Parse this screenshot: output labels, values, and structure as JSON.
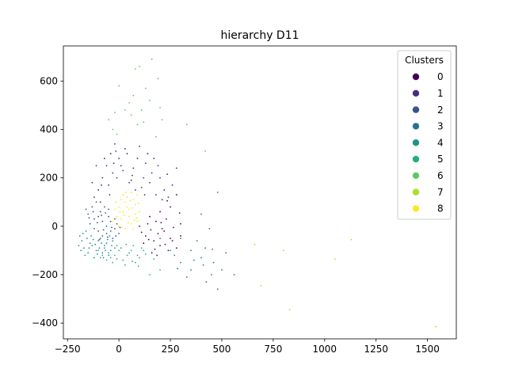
{
  "chart_data": {
    "type": "scatter",
    "title": "hierarchy D11",
    "xlabel": "",
    "ylabel": "",
    "xlim": [
      -270,
      1640
    ],
    "ylim": [
      -465,
      745
    ],
    "xticks": [
      -250,
      0,
      250,
      500,
      750,
      1000,
      1250,
      1500
    ],
    "xtick_labels": [
      "−250",
      "0",
      "250",
      "500",
      "750",
      "1000",
      "1250",
      "1500"
    ],
    "yticks": [
      -400,
      -200,
      0,
      200,
      400,
      600
    ],
    "ytick_labels": [
      "−400",
      "−200",
      "0",
      "200",
      "400",
      "600"
    ],
    "grid": false,
    "legend": {
      "title": "Clusters",
      "placement": "top-right",
      "entries": [
        "0",
        "1",
        "2",
        "3",
        "4",
        "5",
        "6",
        "7",
        "8"
      ]
    },
    "series": [
      {
        "name": "0",
        "color": "#440154",
        "points": [
          [
            100,
            0
          ],
          [
            130,
            -40
          ],
          [
            170,
            -60
          ],
          [
            200,
            -80
          ],
          [
            220,
            -20
          ],
          [
            250,
            -50
          ],
          [
            280,
            -90
          ],
          [
            300,
            10
          ],
          [
            150,
            40
          ],
          [
            180,
            20
          ],
          [
            210,
            -10
          ],
          [
            240,
            -100
          ],
          [
            160,
            -110
          ],
          [
            120,
            -70
          ],
          [
            190,
            -30
          ],
          [
            230,
            30
          ],
          [
            260,
            -60
          ],
          [
            140,
            10
          ],
          [
            200,
            60
          ],
          [
            250,
            80
          ],
          [
            280,
            130
          ],
          [
            300,
            -40
          ],
          [
            175,
            -95
          ],
          [
            110,
            -25
          ],
          [
            225,
            -75
          ],
          [
            265,
            -5
          ],
          [
            145,
            -55
          ],
          [
            205,
            15
          ],
          [
            185,
            -120
          ],
          [
            295,
            55
          ],
          [
            235,
            105
          ],
          [
            155,
            -15
          ]
        ]
      },
      {
        "name": "1",
        "color": "#472d7b",
        "points": [
          [
            -100,
            150
          ],
          [
            -80,
            200
          ],
          [
            -60,
            250
          ],
          [
            -40,
            300
          ],
          [
            -20,
            340
          ],
          [
            0,
            280
          ],
          [
            20,
            230
          ],
          [
            60,
            190
          ],
          [
            100,
            330
          ],
          [
            130,
            260
          ],
          [
            160,
            220
          ],
          [
            200,
            200
          ],
          [
            220,
            150
          ],
          [
            240,
            120
          ],
          [
            280,
            240
          ],
          [
            -120,
            120
          ],
          [
            -90,
            100
          ],
          [
            -50,
            170
          ],
          [
            -30,
            220
          ],
          [
            10,
            250
          ],
          [
            40,
            300
          ],
          [
            80,
            150
          ],
          [
            120,
            200
          ],
          [
            150,
            180
          ],
          [
            180,
            130
          ],
          [
            -70,
            280
          ],
          [
            -110,
            250
          ],
          [
            90,
            280
          ],
          [
            -10,
            200
          ],
          [
            50,
            180
          ],
          [
            170,
            280
          ],
          [
            210,
            110
          ],
          [
            -85,
            170
          ],
          [
            -45,
            130
          ],
          [
            30,
            320
          ],
          [
            70,
            240
          ],
          [
            140,
            300
          ],
          [
            -25,
            260
          ],
          [
            110,
            160
          ],
          [
            190,
            250
          ],
          [
            260,
            170
          ],
          [
            -130,
            180
          ],
          [
            -15,
            310
          ],
          [
            65,
            210
          ],
          [
            125,
            130
          ],
          [
            235,
            215
          ]
        ]
      },
      {
        "name": "2",
        "color": "#3b528b",
        "points": [
          [
            -150,
            50
          ],
          [
            -120,
            30
          ],
          [
            -100,
            -20
          ],
          [
            -80,
            -40
          ],
          [
            -60,
            0
          ],
          [
            -40,
            20
          ],
          [
            -20,
            -10
          ],
          [
            0,
            -30
          ],
          [
            -130,
            80
          ],
          [
            -110,
            100
          ],
          [
            -90,
            60
          ],
          [
            -70,
            80
          ],
          [
            -50,
            40
          ],
          [
            -30,
            -50
          ],
          [
            -10,
            10
          ],
          [
            -140,
            10
          ],
          [
            -100,
            40
          ],
          [
            -60,
            -30
          ],
          [
            -80,
            20
          ],
          [
            -40,
            -20
          ],
          [
            -120,
            -10
          ],
          [
            -20,
            30
          ],
          [
            -160,
            70
          ],
          [
            -50,
            70
          ],
          [
            -95,
            -55
          ],
          [
            -65,
            55
          ],
          [
            -35,
            -5
          ],
          [
            -125,
            60
          ],
          [
            -75,
            -15
          ],
          [
            -15,
            -40
          ],
          [
            -105,
            15
          ],
          [
            -55,
            -45
          ],
          [
            -145,
            35
          ],
          [
            -85,
            45
          ],
          [
            5,
            -5
          ]
        ]
      },
      {
        "name": "3",
        "color": "#2c728e",
        "points": [
          [
            200,
            -50
          ],
          [
            250,
            -100
          ],
          [
            300,
            -150
          ],
          [
            350,
            -100
          ],
          [
            400,
            -130
          ],
          [
            450,
            -200
          ],
          [
            480,
            -260
          ],
          [
            520,
            -110
          ],
          [
            560,
            -200
          ],
          [
            330,
            -210
          ],
          [
            380,
            -60
          ],
          [
            420,
            -90
          ],
          [
            460,
            -150
          ],
          [
            400,
            50
          ],
          [
            480,
            140
          ],
          [
            300,
            -50
          ],
          [
            350,
            -180
          ],
          [
            270,
            -120
          ],
          [
            440,
            -10
          ],
          [
            500,
            -180
          ],
          [
            410,
            -160
          ],
          [
            365,
            -140
          ],
          [
            455,
            -95
          ],
          [
            285,
            -175
          ],
          [
            425,
            -230
          ]
        ]
      },
      {
        "name": "4",
        "color": "#21918c",
        "points": [
          [
            -180,
            -60
          ],
          [
            -170,
            -90
          ],
          [
            -150,
            -110
          ],
          [
            -130,
            -80
          ],
          [
            -110,
            -100
          ],
          [
            -90,
            -50
          ],
          [
            -70,
            -80
          ],
          [
            -50,
            -120
          ],
          [
            -30,
            -60
          ],
          [
            -190,
            -40
          ],
          [
            -160,
            -20
          ],
          [
            -140,
            -70
          ],
          [
            -120,
            -130
          ],
          [
            -100,
            -60
          ],
          [
            -80,
            -110
          ],
          [
            -60,
            -70
          ],
          [
            -40,
            -100
          ],
          [
            -20,
            -90
          ],
          [
            -185,
            -100
          ],
          [
            -175,
            -30
          ],
          [
            -155,
            -50
          ],
          [
            -135,
            -40
          ],
          [
            -115,
            -75
          ],
          [
            -95,
            -90
          ],
          [
            -75,
            -130
          ],
          [
            -55,
            -55
          ],
          [
            -35,
            -80
          ],
          [
            -195,
            -80
          ],
          [
            -165,
            -120
          ],
          [
            -145,
            -90
          ],
          [
            -125,
            -55
          ],
          [
            -105,
            -115
          ],
          [
            -85,
            -70
          ],
          [
            -65,
            -100
          ],
          [
            -45,
            -40
          ]
        ]
      },
      {
        "name": "5",
        "color": "#27ad81",
        "points": [
          [
            -100,
            -100
          ],
          [
            -80,
            -120
          ],
          [
            -60,
            -140
          ],
          [
            -40,
            -130
          ],
          [
            -20,
            -120
          ],
          [
            0,
            -100
          ],
          [
            20,
            -140
          ],
          [
            40,
            -120
          ],
          [
            60,
            -100
          ],
          [
            80,
            -150
          ],
          [
            100,
            -130
          ],
          [
            120,
            -100
          ],
          [
            150,
            -200
          ],
          [
            200,
            -180
          ],
          [
            -70,
            -90
          ],
          [
            -50,
            -110
          ],
          [
            -30,
            -150
          ],
          [
            -10,
            -80
          ],
          [
            10,
            -90
          ],
          [
            30,
            -160
          ],
          [
            50,
            -110
          ],
          [
            70,
            -80
          ],
          [
            90,
            -120
          ],
          [
            110,
            -90
          ],
          [
            -90,
            -130
          ],
          [
            -10,
            -135
          ],
          [
            35,
            -75
          ],
          [
            65,
            -145
          ],
          [
            95,
            -165
          ],
          [
            130,
            -115
          ],
          [
            170,
            -135
          ]
        ]
      },
      {
        "name": "6",
        "color": "#5ec962",
        "points": [
          [
            -50,
            440
          ],
          [
            -20,
            470
          ],
          [
            0,
            580
          ],
          [
            50,
            510
          ],
          [
            80,
            650
          ],
          [
            100,
            660
          ],
          [
            130,
            570
          ],
          [
            160,
            690
          ],
          [
            190,
            610
          ],
          [
            200,
            490
          ],
          [
            210,
            440
          ],
          [
            -10,
            380
          ],
          [
            30,
            480
          ],
          [
            70,
            540
          ],
          [
            120,
            430
          ],
          [
            150,
            520
          ],
          [
            180,
            370
          ],
          [
            90,
            420
          ],
          [
            -30,
            400
          ],
          [
            330,
            420
          ],
          [
            420,
            310
          ],
          [
            60,
            460
          ],
          [
            110,
            480
          ]
        ]
      },
      {
        "name": "7",
        "color": "#addc30",
        "points": [
          [
            660,
            -75
          ],
          [
            690,
            -245
          ],
          [
            800,
            -100
          ],
          [
            830,
            -345
          ],
          [
            1050,
            -135
          ],
          [
            1130,
            -55
          ],
          [
            1540,
            -415
          ]
        ]
      },
      {
        "name": "8",
        "color": "#fde725",
        "points": [
          [
            0,
            0
          ],
          [
            10,
            30
          ],
          [
            20,
            60
          ],
          [
            30,
            100
          ],
          [
            40,
            80
          ],
          [
            50,
            40
          ],
          [
            60,
            10
          ],
          [
            70,
            -10
          ],
          [
            80,
            50
          ],
          [
            90,
            20
          ],
          [
            -10,
            40
          ],
          [
            0,
            80
          ],
          [
            10,
            110
          ],
          [
            20,
            130
          ],
          [
            40,
            120
          ],
          [
            60,
            140
          ],
          [
            80,
            90
          ],
          [
            100,
            60
          ],
          [
            -20,
            70
          ],
          [
            -30,
            20
          ],
          [
            30,
            -10
          ],
          [
            50,
            70
          ],
          [
            70,
            110
          ],
          [
            90,
            130
          ],
          [
            15,
            -5
          ],
          [
            45,
            15
          ],
          [
            65,
            75
          ],
          [
            85,
            35
          ],
          [
            25,
            45
          ],
          [
            55,
            105
          ],
          [
            -15,
            100
          ],
          [
            5,
            60
          ],
          [
            35,
            140
          ],
          [
            75,
            25
          ],
          [
            95,
            95
          ]
        ]
      }
    ]
  }
}
